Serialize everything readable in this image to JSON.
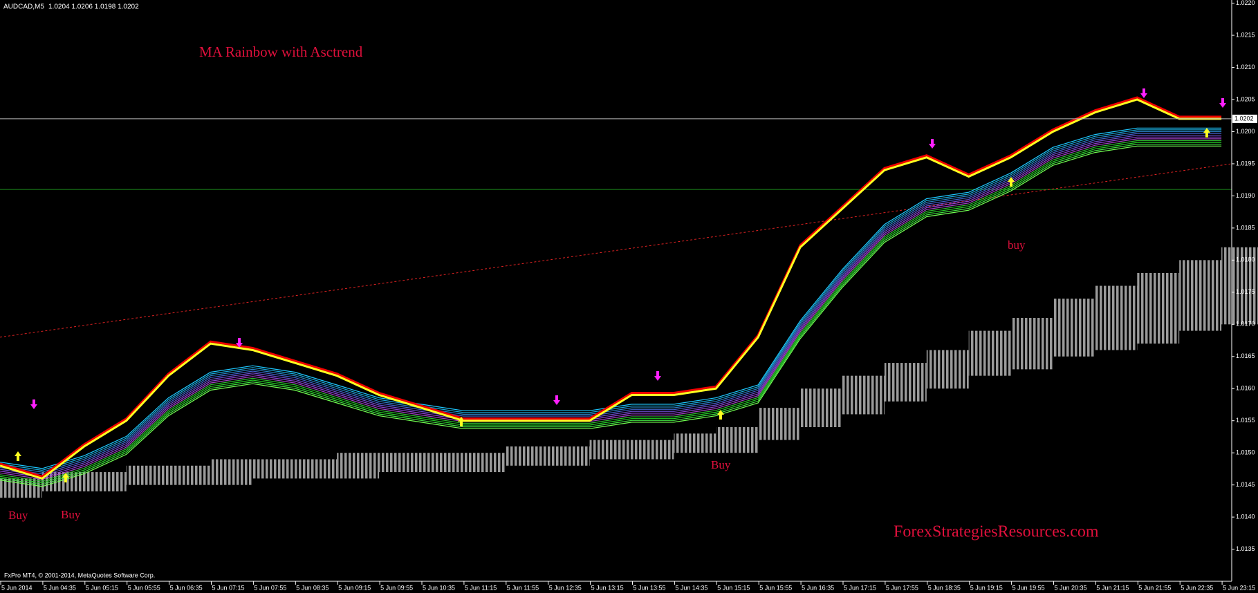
{
  "header": {
    "symbol": "AUDCAD,M5",
    "ohlc": "1.0204 1.0206 1.0198 1.0202"
  },
  "chart": {
    "title": "MA Rainbow with Asctrend",
    "annotations": [
      "Buy",
      "Buy",
      "Buy",
      "buy"
    ],
    "watermark": "ForexStrategiesResources.com",
    "footer": "FxPro MT4, © 2001-2014, MetaQuotes Software Corp.",
    "current_price": {
      "value": 1.0202,
      "label": "1.0202"
    },
    "level_line": 1.0191,
    "trend_line": [
      1.0168,
      1.0195
    ],
    "ylim": [
      1.0135,
      1.022
    ],
    "yticks": [
      {
        "value": 1.022,
        "label": "1.0220"
      },
      1.0215,
      {
        "value": 1.021,
        "label": "1.0210"
      },
      1.0205,
      {
        "value": 1.02,
        "label": "1.0200"
      },
      1.0195,
      {
        "value": 1.019,
        "label": "1.0190"
      },
      1.0185,
      {
        "value": 1.018,
        "label": "1.0180"
      },
      1.0175,
      {
        "value": 1.017,
        "label": "1.0170"
      },
      1.0165,
      {
        "value": 1.016,
        "label": "1.0160"
      },
      1.0155,
      {
        "value": 1.015,
        "label": "1.0150"
      },
      1.0145,
      {
        "value": 1.014,
        "label": "1.0140"
      },
      1.0135
    ],
    "categories": [
      "5 Jun 2014",
      "5 Jun 04:35",
      "5 Jun 05:15",
      "5 Jun 05:55",
      "5 Jun 06:35",
      "5 Jun 07:15",
      "5 Jun 07:55",
      "5 Jun 08:35",
      "5 Jun 09:15",
      "5 Jun 09:55",
      "5 Jun 10:35",
      "5 Jun 11:15",
      "5 Jun 11:55",
      "5 Jun 12:35",
      "5 Jun 13:15",
      "5 Jun 13:55",
      "5 Jun 14:35",
      "5 Jun 15:15",
      "5 Jun 15:55",
      "5 Jun 16:35",
      "5 Jun 17:15",
      "5 Jun 17:55",
      "5 Jun 18:35",
      "5 Jun 19:15",
      "5 Jun 19:55",
      "5 Jun 20:35",
      "5 Jun 21:15",
      "5 Jun 21:55",
      "5 Jun 22:35",
      "5 Jun 23:15"
    ],
    "fast_ma": [
      1.0148,
      1.0146,
      1.0151,
      1.0155,
      1.0162,
      1.0167,
      1.0166,
      1.0164,
      1.0162,
      1.0159,
      1.0157,
      1.0155,
      1.0155,
      1.0155,
      1.0155,
      1.0159,
      1.0159,
      1.016,
      1.0168,
      1.0182,
      1.0188,
      1.0194,
      1.0196,
      1.0193,
      1.0196,
      1.02,
      1.0203,
      1.0205,
      1.0202,
      1.0202
    ],
    "rainbow_ma": [
      1.0148,
      1.0147,
      1.0149,
      1.0152,
      1.0158,
      1.0162,
      1.0163,
      1.0162,
      1.016,
      1.0158,
      1.0157,
      1.0156,
      1.0156,
      1.0156,
      1.0156,
      1.0157,
      1.0157,
      1.0158,
      1.016,
      1.017,
      1.0178,
      1.0185,
      1.0189,
      1.019,
      1.0193,
      1.0197,
      1.0199,
      1.02,
      1.02,
      1.02
    ],
    "band_top": [
      1.0146,
      1.0147,
      1.0147,
      1.0148,
      1.0148,
      1.0149,
      1.0149,
      1.0149,
      1.015,
      1.015,
      1.015,
      1.015,
      1.0151,
      1.0151,
      1.0152,
      1.0152,
      1.0153,
      1.0154,
      1.0157,
      1.016,
      1.0162,
      1.0164,
      1.0166,
      1.0169,
      1.0171,
      1.0174,
      1.0176,
      1.0178,
      1.018,
      1.0182
    ],
    "band_bottom": [
      1.0143,
      1.0144,
      1.0144,
      1.0145,
      1.0145,
      1.0145,
      1.0146,
      1.0146,
      1.0146,
      1.0147,
      1.0147,
      1.0147,
      1.0148,
      1.0148,
      1.0149,
      1.0149,
      1.015,
      1.015,
      1.0152,
      1.0154,
      1.0156,
      1.0158,
      1.016,
      1.0162,
      1.0163,
      1.0165,
      1.0166,
      1.0167,
      1.0169,
      1.017
    ]
  }
}
